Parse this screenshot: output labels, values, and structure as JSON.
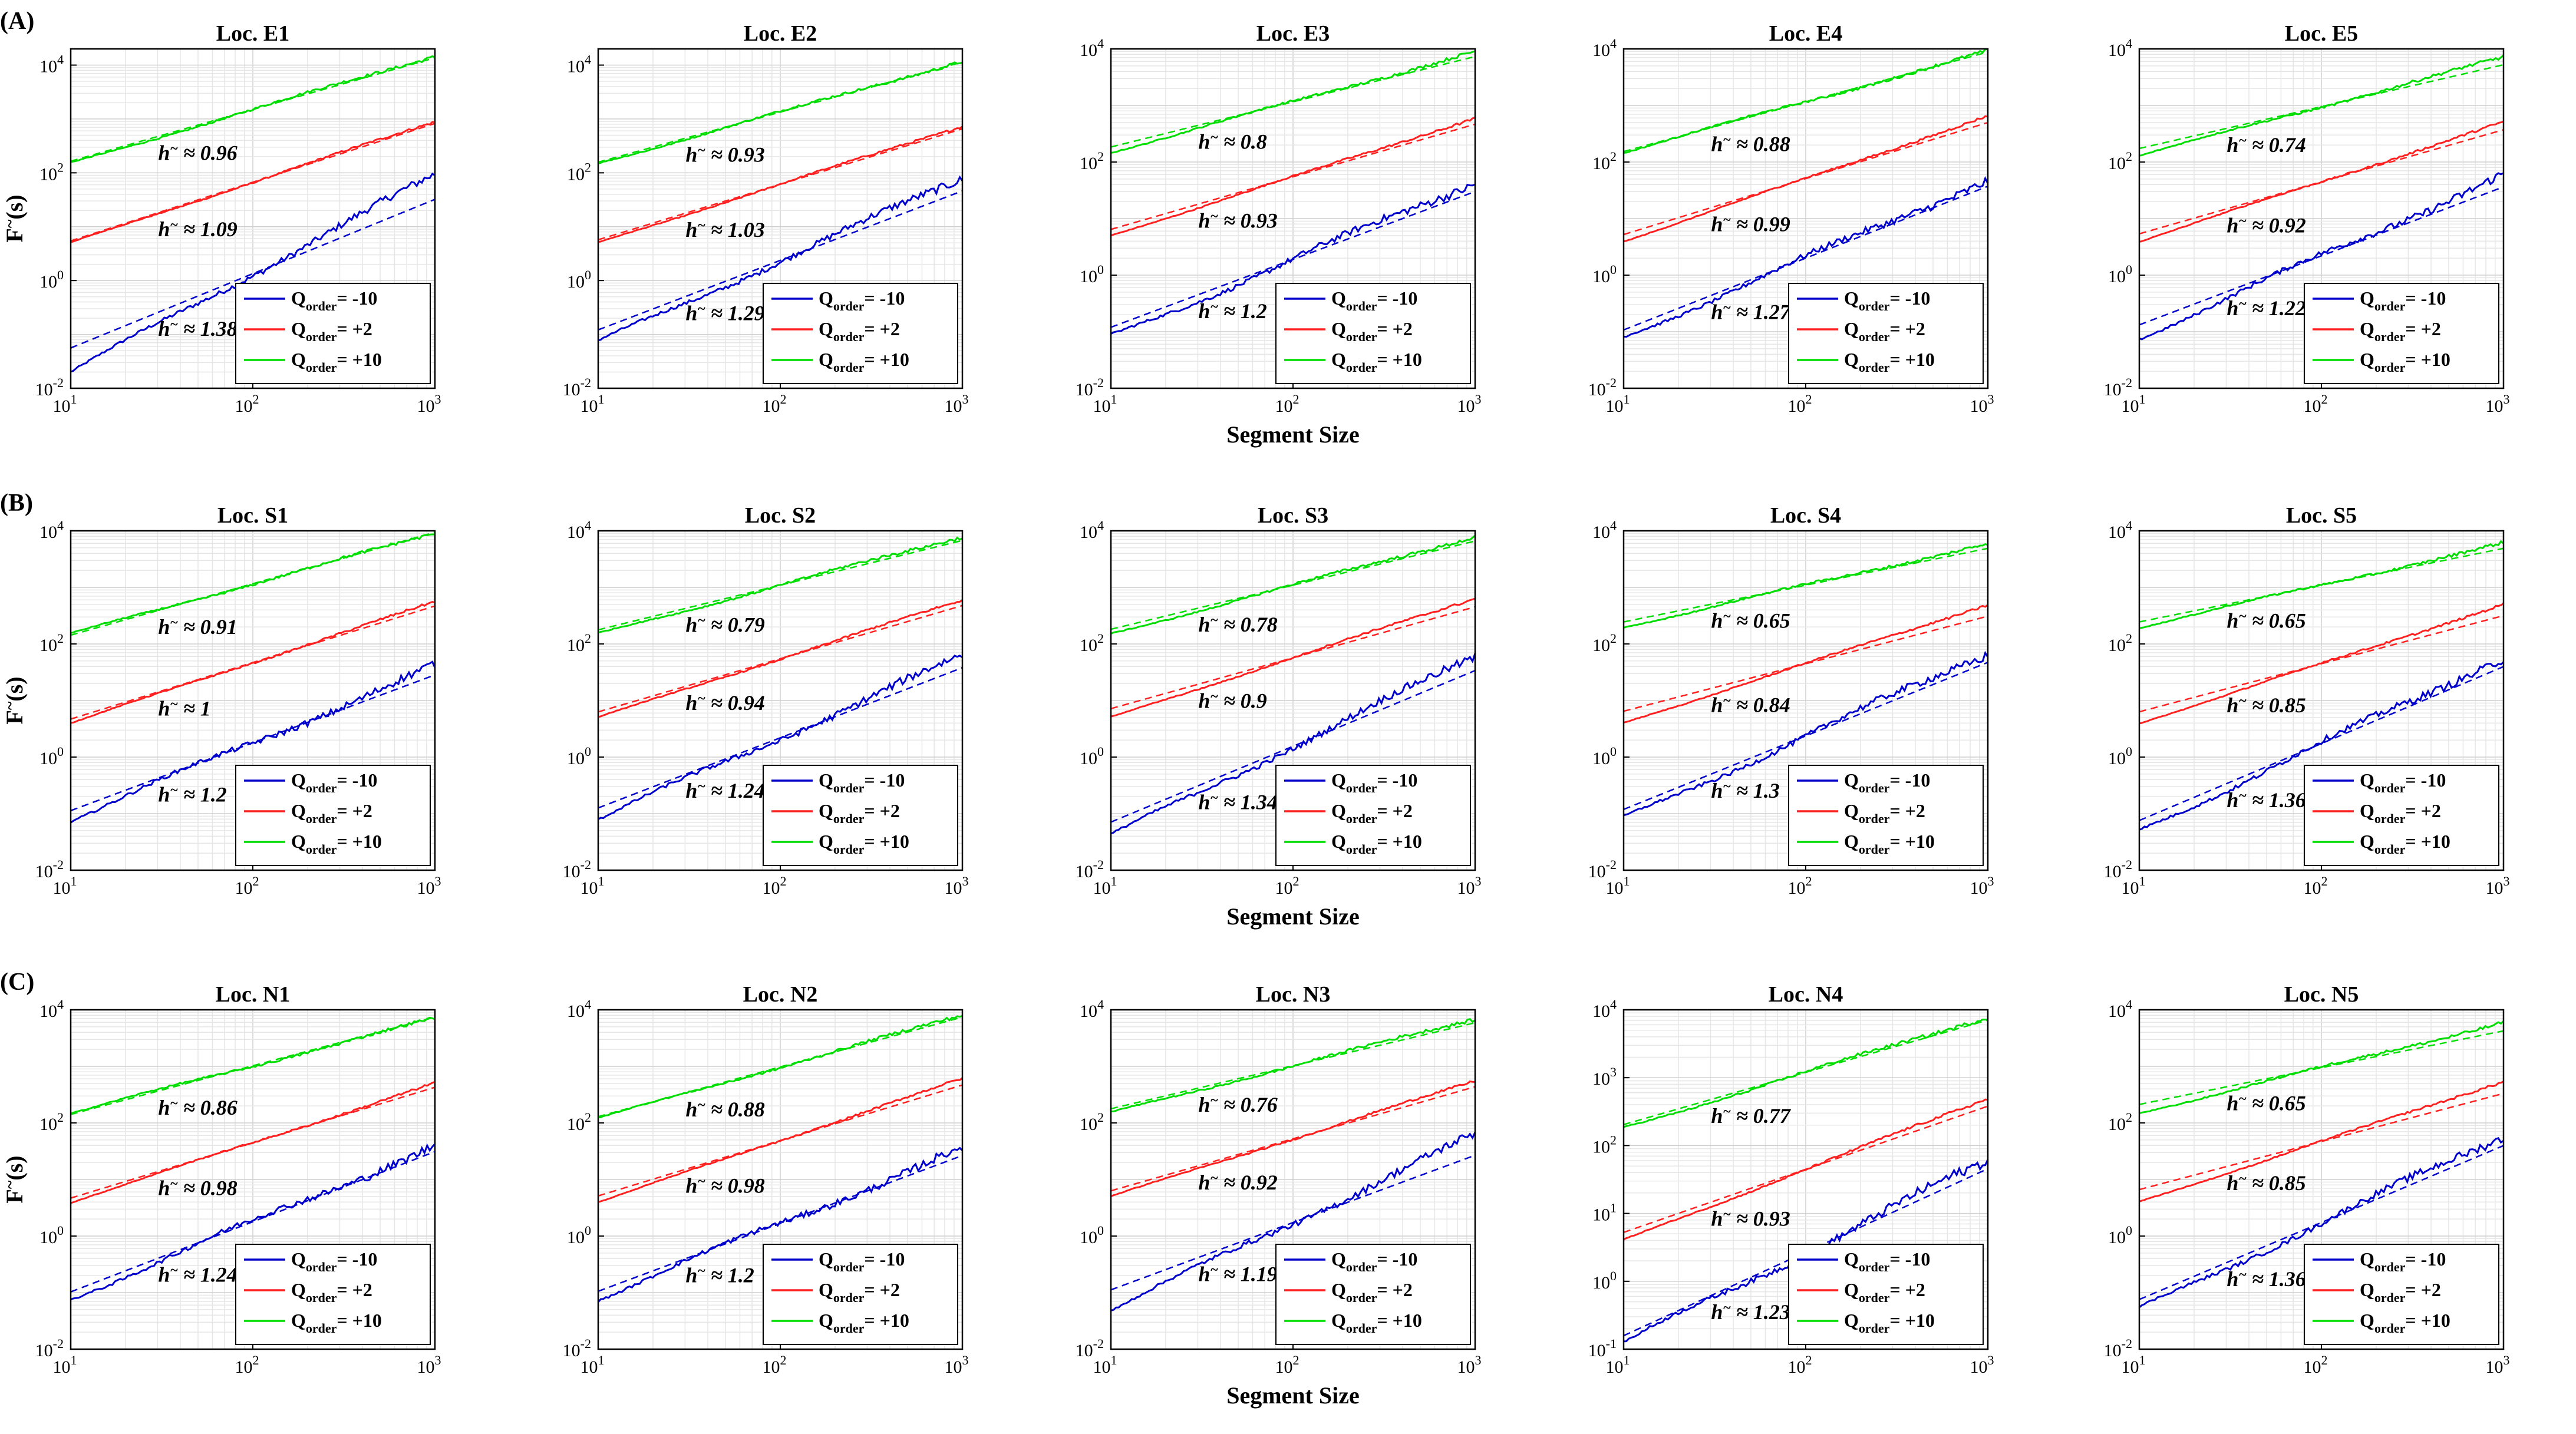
{
  "figure": {
    "row_labels": [
      "(A)",
      "(B)",
      "(C)"
    ],
    "xlabel": "Segment Size",
    "ylabel": "F",
    "ylabel_sup": "~",
    "ylabel_suffix": "(s)",
    "hurst_symbol": "h",
    "hurst_sup": "~",
    "approx": "≈",
    "legend": [
      {
        "base": "Q",
        "sub": "order",
        "suffix": "= -10",
        "color": "#0000cc"
      },
      {
        "base": "Q",
        "sub": "order",
        "suffix": "= +2",
        "color": "#ff2020"
      },
      {
        "base": "Q",
        "sub": "order",
        "suffix": "= +10",
        "color": "#00dd00"
      }
    ]
  },
  "chart_data": [
    {
      "type": "line",
      "title": "Loc. E1",
      "xscale": "log",
      "yscale": "log",
      "xlim": [
        10,
        1000
      ],
      "ylim": [
        0.01,
        20000
      ],
      "yticks": [
        0.01,
        1,
        100,
        10000
      ],
      "h": [
        1.38,
        1.09,
        0.96
      ],
      "start": [
        0.02,
        5,
        150
      ],
      "end": [
        90,
        900,
        15000
      ]
    },
    {
      "type": "line",
      "title": "Loc. E2",
      "xscale": "log",
      "yscale": "log",
      "xlim": [
        10,
        1000
      ],
      "ylim": [
        0.01,
        20000
      ],
      "yticks": [
        0.01,
        1,
        100,
        10000
      ],
      "h": [
        1.29,
        1.03,
        0.93
      ],
      "start": [
        0.07,
        5,
        150
      ],
      "end": [
        80,
        750,
        12000
      ]
    },
    {
      "type": "line",
      "title": "Loc. E3",
      "xscale": "log",
      "yscale": "log",
      "xlim": [
        10,
        1000
      ],
      "ylim": [
        0.01,
        10000
      ],
      "yticks": [
        0.01,
        1,
        100,
        10000
      ],
      "h": [
        1.2,
        0.93,
        0.8
      ],
      "start": [
        0.08,
        5,
        150
      ],
      "end": [
        45,
        600,
        9000
      ]
    },
    {
      "type": "line",
      "title": "Loc. E4",
      "xscale": "log",
      "yscale": "log",
      "xlim": [
        10,
        1000
      ],
      "ylim": [
        0.01,
        10000
      ],
      "yticks": [
        0.01,
        1,
        100,
        10000
      ],
      "h": [
        1.27,
        0.99,
        0.88
      ],
      "start": [
        0.08,
        4,
        150
      ],
      "end": [
        50,
        650,
        9000
      ]
    },
    {
      "type": "line",
      "title": "Loc. E5",
      "xscale": "log",
      "yscale": "log",
      "xlim": [
        10,
        1000
      ],
      "ylim": [
        0.01,
        10000
      ],
      "yticks": [
        0.01,
        1,
        100,
        10000
      ],
      "h": [
        1.22,
        0.92,
        0.74
      ],
      "start": [
        0.08,
        4,
        130
      ],
      "end": [
        60,
        500,
        7000
      ]
    },
    {
      "type": "line",
      "title": "Loc. S1",
      "xscale": "log",
      "yscale": "log",
      "xlim": [
        10,
        1000
      ],
      "ylim": [
        0.01,
        10000
      ],
      "yticks": [
        0.01,
        1,
        100,
        10000
      ],
      "h": [
        1.2,
        1,
        0.91
      ],
      "start": [
        0.08,
        4,
        150
      ],
      "end": [
        40,
        550,
        9000
      ]
    },
    {
      "type": "line",
      "title": "Loc. S2",
      "xscale": "log",
      "yscale": "log",
      "xlim": [
        10,
        1000
      ],
      "ylim": [
        0.01,
        10000
      ],
      "yticks": [
        0.01,
        1,
        100,
        10000
      ],
      "h": [
        1.24,
        0.94,
        0.79
      ],
      "start": [
        0.08,
        5,
        150
      ],
      "end": [
        60,
        600,
        8000
      ]
    },
    {
      "type": "line",
      "title": "Loc. S3",
      "xscale": "log",
      "yscale": "log",
      "xlim": [
        10,
        1000
      ],
      "ylim": [
        0.01,
        10000
      ],
      "yticks": [
        0.01,
        1,
        100,
        10000
      ],
      "h": [
        1.34,
        0.9,
        0.78
      ],
      "start": [
        0.04,
        5,
        150
      ],
      "end": [
        60,
        650,
        8000
      ]
    },
    {
      "type": "line",
      "title": "Loc. S4",
      "xscale": "log",
      "yscale": "log",
      "xlim": [
        10,
        1000
      ],
      "ylim": [
        0.01,
        10000
      ],
      "yticks": [
        0.01,
        1,
        100,
        10000
      ],
      "h": [
        1.3,
        0.84,
        0.65
      ],
      "start": [
        0.08,
        4,
        200
      ],
      "end": [
        70,
        500,
        6000
      ]
    },
    {
      "type": "line",
      "title": "Loc. S5",
      "xscale": "log",
      "yscale": "log",
      "xlim": [
        10,
        1000
      ],
      "ylim": [
        0.01,
        10000
      ],
      "yticks": [
        0.01,
        1,
        100,
        10000
      ],
      "h": [
        1.36,
        0.85,
        0.65
      ],
      "start": [
        0.05,
        4,
        200
      ],
      "end": [
        60,
        500,
        6000
      ]
    },
    {
      "type": "line",
      "title": "Loc. N1",
      "xscale": "log",
      "yscale": "log",
      "xlim": [
        10,
        1000
      ],
      "ylim": [
        0.01,
        10000
      ],
      "yticks": [
        0.01,
        1,
        100,
        10000
      ],
      "h": [
        1.24,
        0.98,
        0.86
      ],
      "start": [
        0.08,
        4,
        150
      ],
      "end": [
        40,
        500,
        7000
      ]
    },
    {
      "type": "line",
      "title": "Loc. N2",
      "xscale": "log",
      "yscale": "log",
      "xlim": [
        10,
        1000
      ],
      "ylim": [
        0.01,
        10000
      ],
      "yticks": [
        0.01,
        1,
        100,
        10000
      ],
      "h": [
        1.2,
        0.98,
        0.88
      ],
      "start": [
        0.08,
        4,
        120
      ],
      "end": [
        35,
        600,
        8000
      ]
    },
    {
      "type": "line",
      "title": "Loc. N3",
      "xscale": "log",
      "yscale": "log",
      "xlim": [
        10,
        1000
      ],
      "ylim": [
        0.01,
        10000
      ],
      "yticks": [
        0.01,
        1,
        100,
        10000
      ],
      "h": [
        1.19,
        0.92,
        0.76
      ],
      "start": [
        0.05,
        5,
        150
      ],
      "end": [
        60,
        550,
        7000
      ]
    },
    {
      "type": "line",
      "title": "Loc. N4",
      "xscale": "log",
      "yscale": "log",
      "xlim": [
        10,
        1000
      ],
      "ylim": [
        0.1,
        10000
      ],
      "yticks": [
        0.1,
        1,
        10,
        100,
        1000,
        10000
      ],
      "h": [
        1.23,
        0.93,
        0.77
      ],
      "start": [
        0.12,
        4,
        180
      ],
      "end": [
        60,
        500,
        8000
      ]
    },
    {
      "type": "line",
      "title": "Loc. N5",
      "xscale": "log",
      "yscale": "log",
      "xlim": [
        10,
        1000
      ],
      "ylim": [
        0.01,
        10000
      ],
      "yticks": [
        0.01,
        1,
        100,
        10000
      ],
      "h": [
        1.36,
        0.85,
        0.65
      ],
      "start": [
        0.05,
        4,
        150
      ],
      "end": [
        60,
        550,
        6000
      ]
    }
  ]
}
